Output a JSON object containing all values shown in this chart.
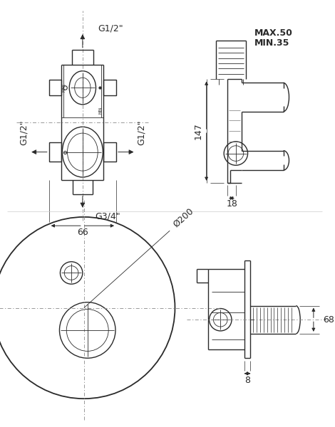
{
  "bg_color": "#ffffff",
  "line_color": "#2a2a2a",
  "dim_color": "#2a2a2a",
  "dash_color": "#888888",
  "figsize": [
    4.7,
    6.0
  ],
  "dpi": 100,
  "top_left": {
    "label_top": "G1/2\"",
    "label_left": "G1/2\"",
    "label_right": "G1/2\"",
    "label_bottom": "G3/4\"",
    "dim_width": "66"
  },
  "top_right": {
    "label_max": "MAX.50",
    "label_min": "MIN.35",
    "label_147": "147",
    "label_18": "18"
  },
  "bottom_left": {
    "radius_label": "Ø200"
  },
  "bottom_right": {
    "label_68": "68",
    "label_8": "8"
  }
}
